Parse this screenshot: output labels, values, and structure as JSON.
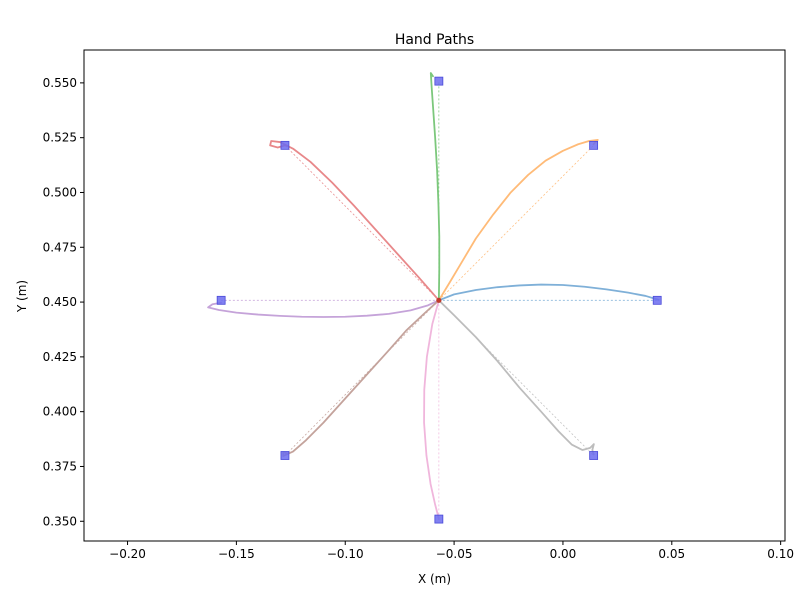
{
  "chart_data": {
    "type": "line",
    "title": "Hand Paths",
    "xlabel": "X (m)",
    "ylabel": "Y (m)",
    "xlim": [
      -0.22,
      0.102
    ],
    "ylim": [
      0.341,
      0.565
    ],
    "grid": false,
    "x_ticks": [
      -0.2,
      -0.15,
      -0.1,
      -0.05,
      0.0,
      0.05,
      0.1
    ],
    "x_tick_labels": [
      "−0.20",
      "−0.15",
      "−0.10",
      "−0.05",
      "0.00",
      "0.05",
      "0.10"
    ],
    "y_ticks": [
      0.35,
      0.375,
      0.4,
      0.425,
      0.45,
      0.475,
      0.5,
      0.525,
      0.55
    ],
    "y_tick_labels": [
      "0.350",
      "0.375",
      "0.400",
      "0.425",
      "0.450",
      "0.475",
      "0.500",
      "0.525",
      "0.550"
    ],
    "start_point": {
      "x": -0.057,
      "y": 0.4508,
      "color": "#c0392b"
    },
    "target_marker": {
      "shape": "square",
      "color": "#6b6bef"
    },
    "series": [
      {
        "color": "#7fb0d8",
        "target": {
          "x": 0.0433,
          "y": 0.4508
        },
        "path": [
          [
            -0.057,
            0.4508
          ],
          [
            -0.05,
            0.4535
          ],
          [
            -0.04,
            0.4555
          ],
          [
            -0.03,
            0.4568
          ],
          [
            -0.02,
            0.4576
          ],
          [
            -0.01,
            0.458
          ],
          [
            0.0,
            0.4578
          ],
          [
            0.01,
            0.457
          ],
          [
            0.02,
            0.4558
          ],
          [
            0.03,
            0.4543
          ],
          [
            0.038,
            0.4528
          ],
          [
            0.044,
            0.451
          ]
        ]
      },
      {
        "color": "#ffbb78",
        "target": {
          "x": 0.0141,
          "y": 0.5215
        },
        "path": [
          [
            -0.057,
            0.4508
          ],
          [
            -0.052,
            0.459
          ],
          [
            -0.046,
            0.469
          ],
          [
            -0.04,
            0.479
          ],
          [
            -0.032,
            0.49
          ],
          [
            -0.024,
            0.5
          ],
          [
            -0.016,
            0.508
          ],
          [
            -0.008,
            0.5145
          ],
          [
            0.0,
            0.519
          ],
          [
            0.007,
            0.522
          ],
          [
            0.012,
            0.5235
          ],
          [
            0.016,
            0.524
          ],
          [
            0.014,
            0.522
          ]
        ]
      },
      {
        "color": "#7cc87c",
        "target": {
          "x": -0.057,
          "y": 0.5508
        },
        "path": [
          [
            -0.057,
            0.4508
          ],
          [
            -0.0568,
            0.465
          ],
          [
            -0.0568,
            0.48
          ],
          [
            -0.0572,
            0.495
          ],
          [
            -0.0578,
            0.51
          ],
          [
            -0.0587,
            0.525
          ],
          [
            -0.0596,
            0.538
          ],
          [
            -0.0603,
            0.548
          ],
          [
            -0.0607,
            0.5545
          ],
          [
            -0.0597,
            0.553
          ]
        ]
      },
      {
        "color": "#e8888a",
        "target": {
          "x": -0.1277,
          "y": 0.5215
        },
        "path": [
          [
            -0.057,
            0.4508
          ],
          [
            -0.066,
            0.461
          ],
          [
            -0.076,
            0.472
          ],
          [
            -0.086,
            0.483
          ],
          [
            -0.096,
            0.494
          ],
          [
            -0.106,
            0.5045
          ],
          [
            -0.116,
            0.514
          ],
          [
            -0.124,
            0.52
          ],
          [
            -0.13,
            0.523
          ],
          [
            -0.134,
            0.5235
          ],
          [
            -0.1345,
            0.5215
          ],
          [
            -0.131,
            0.5205
          ],
          [
            -0.1277,
            0.5215
          ]
        ]
      },
      {
        "color": "#c5a3d9",
        "target": {
          "x": -0.157,
          "y": 0.4508
        },
        "path": [
          [
            -0.057,
            0.4508
          ],
          [
            -0.062,
            0.4485
          ],
          [
            -0.07,
            0.4462
          ],
          [
            -0.08,
            0.4446
          ],
          [
            -0.09,
            0.4438
          ],
          [
            -0.1,
            0.4433
          ],
          [
            -0.11,
            0.4432
          ],
          [
            -0.12,
            0.4433
          ],
          [
            -0.13,
            0.4437
          ],
          [
            -0.14,
            0.4443
          ],
          [
            -0.15,
            0.4452
          ],
          [
            -0.158,
            0.4464
          ],
          [
            -0.163,
            0.4476
          ],
          [
            -0.161,
            0.449
          ],
          [
            -0.157,
            0.4497
          ]
        ]
      },
      {
        "color": "#c4a39c",
        "target": {
          "x": -0.1277,
          "y": 0.38
        },
        "path": [
          [
            -0.057,
            0.4508
          ],
          [
            -0.064,
            0.4445
          ],
          [
            -0.072,
            0.437
          ],
          [
            -0.08,
            0.428
          ],
          [
            -0.09,
            0.417
          ],
          [
            -0.1,
            0.406
          ],
          [
            -0.11,
            0.395
          ],
          [
            -0.118,
            0.387
          ],
          [
            -0.124,
            0.3818
          ],
          [
            -0.1285,
            0.3798
          ],
          [
            -0.1285,
            0.3815
          ],
          [
            -0.126,
            0.3808
          ]
        ]
      },
      {
        "color": "#f0b6dc",
        "target": {
          "x": -0.057,
          "y": 0.351
        },
        "path": [
          [
            -0.057,
            0.4508
          ],
          [
            -0.06,
            0.44
          ],
          [
            -0.0625,
            0.425
          ],
          [
            -0.0637,
            0.41
          ],
          [
            -0.0638,
            0.395
          ],
          [
            -0.0627,
            0.38
          ],
          [
            -0.0608,
            0.367
          ],
          [
            -0.0588,
            0.358
          ],
          [
            -0.0575,
            0.353
          ],
          [
            -0.057,
            0.351
          ]
        ]
      },
      {
        "color": "#bdbdbd",
        "target": {
          "x": 0.0141,
          "y": 0.38
        },
        "path": [
          [
            -0.057,
            0.4508
          ],
          [
            -0.05,
            0.444
          ],
          [
            -0.04,
            0.434
          ],
          [
            -0.03,
            0.423
          ],
          [
            -0.02,
            0.411
          ],
          [
            -0.01,
            0.4
          ],
          [
            -0.002,
            0.391
          ],
          [
            0.004,
            0.385
          ],
          [
            0.009,
            0.3825
          ],
          [
            0.0125,
            0.3835
          ],
          [
            0.0142,
            0.3852
          ],
          [
            0.0135,
            0.3825
          ],
          [
            0.0141,
            0.3805
          ]
        ]
      }
    ]
  }
}
